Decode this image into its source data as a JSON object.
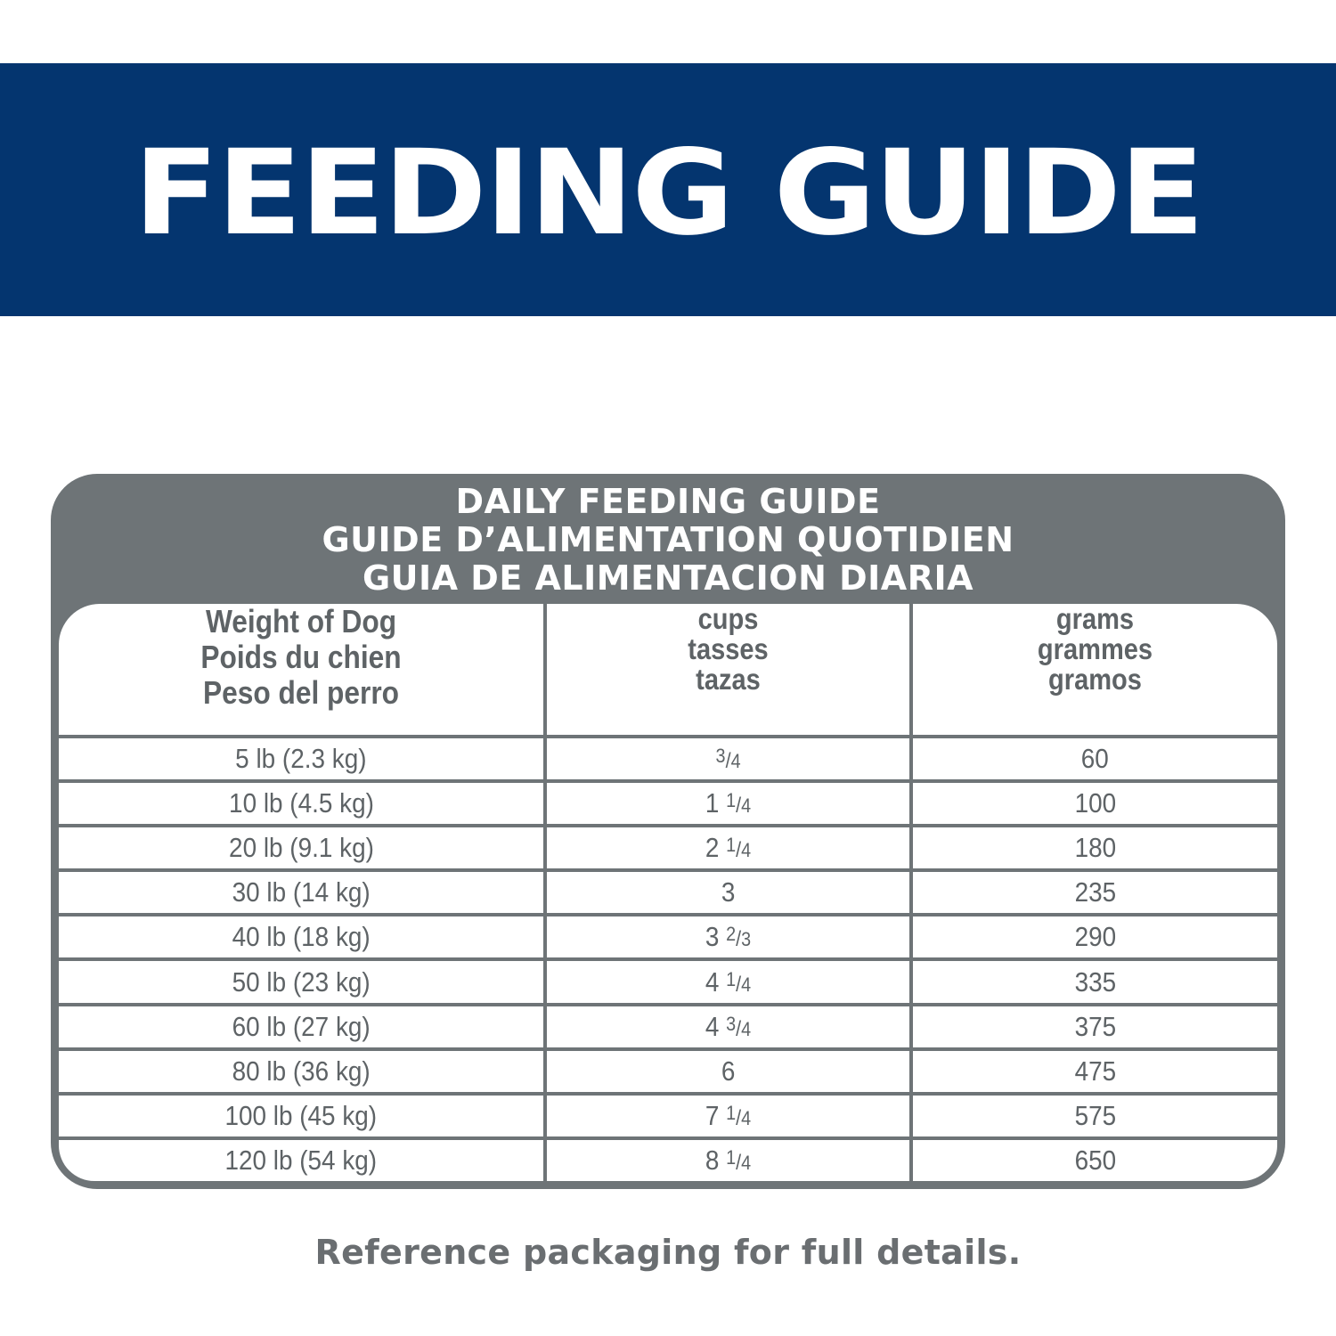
{
  "banner": {
    "title": "FEEDING GUIDE",
    "background_color": "#04356f",
    "text_color": "#ffffff"
  },
  "card": {
    "title_lines": [
      "DAILY FEEDING GUIDE",
      "GUIDE D’ALIMENTATION QUOTIDIEN",
      "GUIA DE ALIMENTACION DIARIA"
    ],
    "frame_color": "#6e7477"
  },
  "table": {
    "headers": [
      {
        "lines": [
          "Weight of Dog",
          "Poids du chien",
          "Peso del perro"
        ]
      },
      {
        "lines": [
          "cups",
          "tasses",
          "tazas"
        ]
      },
      {
        "lines": [
          "grams",
          "grammes",
          "gramos"
        ]
      }
    ],
    "rows": [
      {
        "weight": "5 lb (2.3 kg)",
        "cups": "3/4",
        "grams": "60"
      },
      {
        "weight": "10 lb (4.5 kg)",
        "cups": "1 1/4",
        "grams": "100"
      },
      {
        "weight": "20 lb (9.1 kg)",
        "cups": "2 1/4",
        "grams": "180"
      },
      {
        "weight": "30 lb (14 kg)",
        "cups": "3",
        "grams": "235"
      },
      {
        "weight": "40 lb (18 kg)",
        "cups": "3 2/3",
        "grams": "290"
      },
      {
        "weight": "50 lb (23 kg)",
        "cups": "4 1/4",
        "grams": "335"
      },
      {
        "weight": "60 lb (27 kg)",
        "cups": "4 3/4",
        "grams": "375"
      },
      {
        "weight": "80 lb (36 kg)",
        "cups": "6",
        "grams": "475"
      },
      {
        "weight": "100 lb (45 kg)",
        "cups": "7 1/4",
        "grams": "575"
      },
      {
        "weight": "120 lb (54 kg)",
        "cups": "8 1/4",
        "grams": "650"
      }
    ]
  },
  "footer": {
    "note": "Reference packaging for full details."
  }
}
